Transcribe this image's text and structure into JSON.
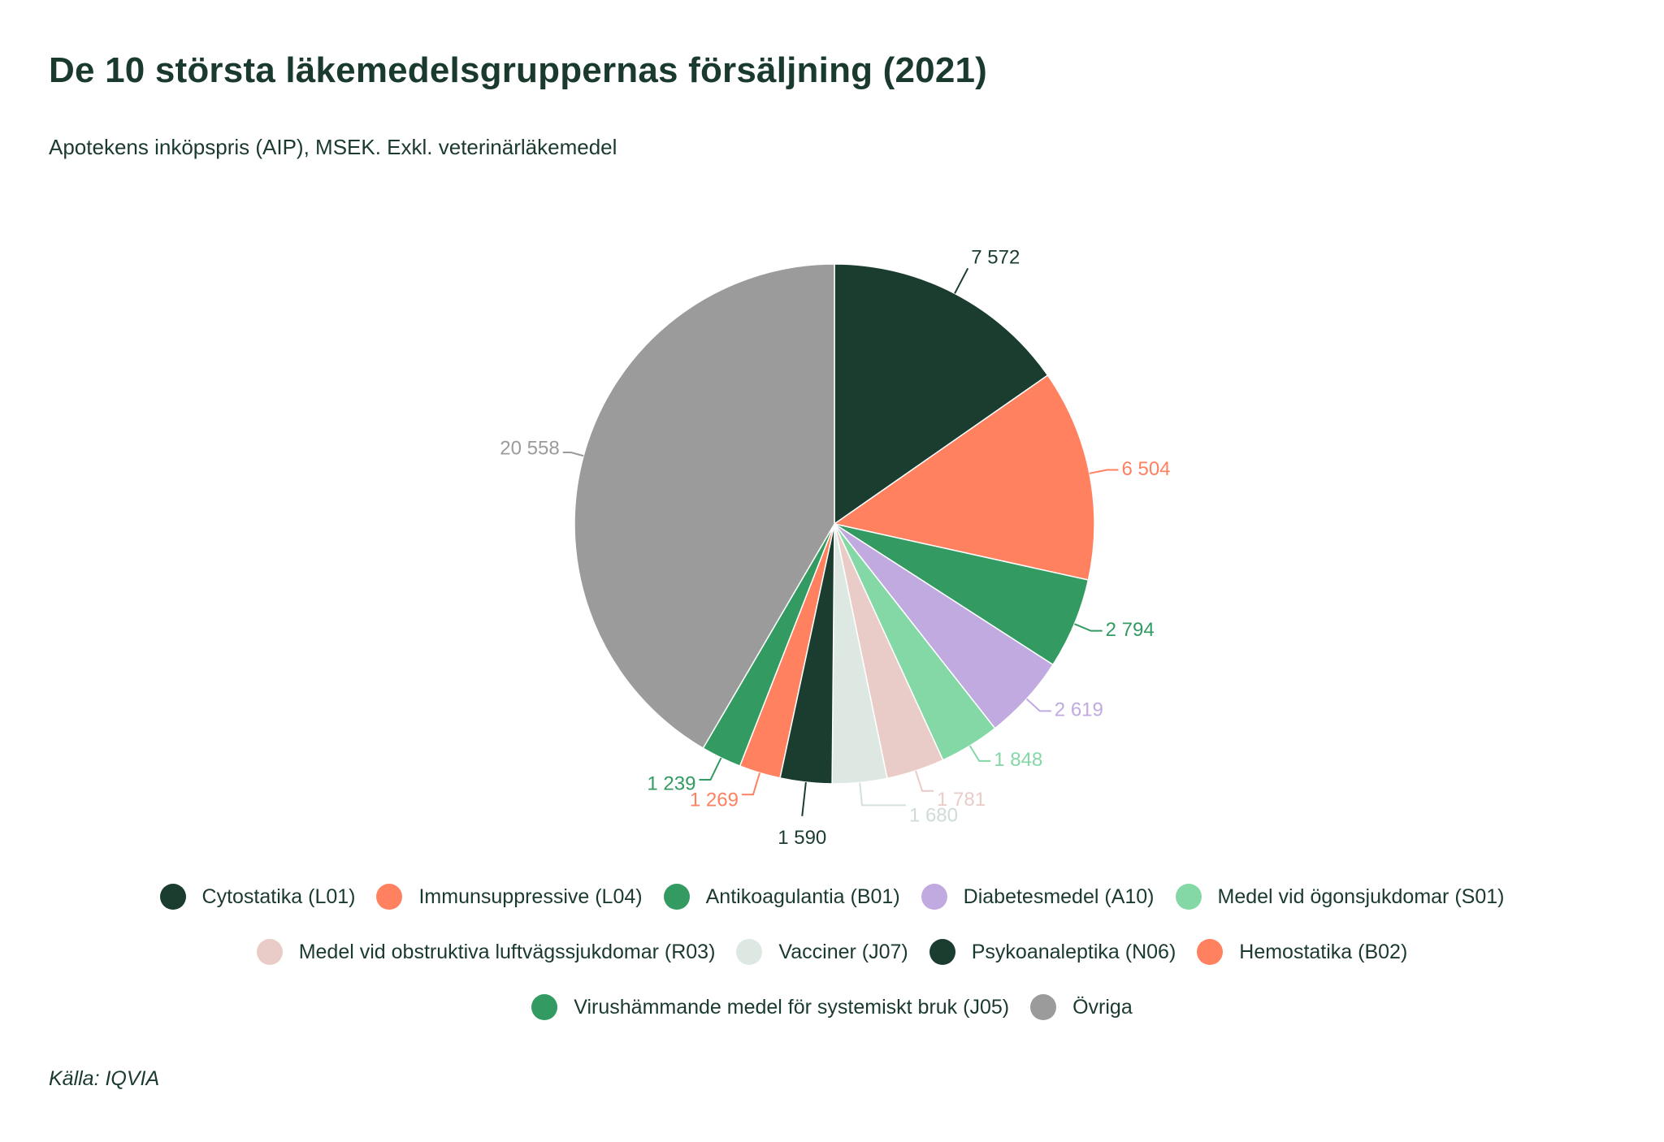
{
  "chart_data": {
    "type": "pie",
    "title": "De 10 största läkemedelsgruppernas försäljning (2021)",
    "subtitle": "Apotekens inköpspris (AIP), MSEK. Exkl. veterinärläkemedel",
    "source": "Källa: IQVIA",
    "start_angle": "12 o'clock, clockwise",
    "legend_position": "bottom",
    "slices": [
      {
        "name": "Cytostatika (L01)",
        "value": 7572,
        "label": "7 572",
        "color": "#1b3d2f"
      },
      {
        "name": "Immunsuppressive (L04)",
        "value": 6504,
        "label": "6 504",
        "color": "#ff8160"
      },
      {
        "name": "Antikoagulantia (B01)",
        "value": 2794,
        "label": "2 794",
        "color": "#339b62"
      },
      {
        "name": "Diabetesmedel (A10)",
        "value": 2619,
        "label": "2 619",
        "color": "#c0aae0"
      },
      {
        "name": "Medel vid ögonsjukdomar (S01)",
        "value": 1848,
        "label": "1 848",
        "color": "#84d8a6"
      },
      {
        "name": "Medel vid obstruktiva luftvägssjukdomar (R03)",
        "value": 1781,
        "label": "1 781",
        "color": "#e9ccc7"
      },
      {
        "name": "Vacciner (J07)",
        "value": 1680,
        "label": "1 680",
        "color": "#dde8e2"
      },
      {
        "name": "Psykoanaleptika (N06)",
        "value": 1590,
        "label": "1 590",
        "color": "#1b3d2f"
      },
      {
        "name": "Hemostatika (B02)",
        "value": 1269,
        "label": "1 269",
        "color": "#ff8160"
      },
      {
        "name": "Virushämmande medel för systemiskt bruk (J05)",
        "value": 1239,
        "label": "1 239",
        "color": "#339b62"
      },
      {
        "name": "Övriga",
        "value": 20558,
        "label": "20 558",
        "color": "#9b9b9b"
      }
    ]
  }
}
